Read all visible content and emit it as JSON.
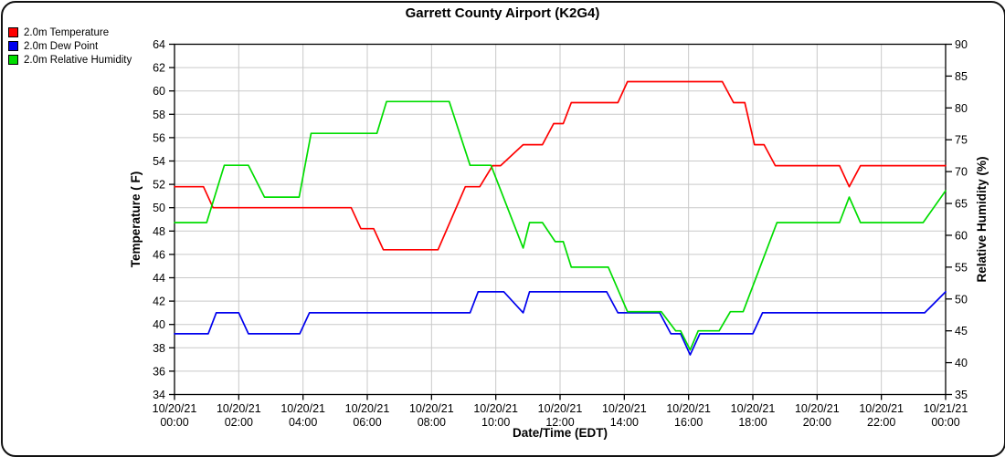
{
  "window": {
    "title": "Garrett County Airport (K2G4)"
  },
  "legend": {
    "items": [
      {
        "label": "2.0m Temperature",
        "color": "#ff0000"
      },
      {
        "label": "2.0m Dew Point",
        "color": "#0000ee"
      },
      {
        "label": "2.0m Relative Humidity",
        "color": "#00dd00"
      }
    ]
  },
  "chart_data": {
    "type": "line",
    "title": "Garrett County Airport (K2G4)",
    "grid": true,
    "grid_color": "#c9c9c9",
    "axis_color": "#000000",
    "x_axis": {
      "label": "Date/Time (EDT)",
      "range_hours": [
        0,
        24
      ],
      "tick_interval_hours": 2,
      "tick_labels": [
        {
          "date": "10/20/21",
          "time": "00:00"
        },
        {
          "date": "10/20/21",
          "time": "02:00"
        },
        {
          "date": "10/20/21",
          "time": "04:00"
        },
        {
          "date": "10/20/21",
          "time": "06:00"
        },
        {
          "date": "10/20/21",
          "time": "08:00"
        },
        {
          "date": "10/20/21",
          "time": "10:00"
        },
        {
          "date": "10/20/21",
          "time": "12:00"
        },
        {
          "date": "10/20/21",
          "time": "14:00"
        },
        {
          "date": "10/20/21",
          "time": "16:00"
        },
        {
          "date": "10/20/21",
          "time": "18:00"
        },
        {
          "date": "10/20/21",
          "time": "20:00"
        },
        {
          "date": "10/20/21",
          "time": "22:00"
        },
        {
          "date": "10/21/21",
          "time": "00:00"
        }
      ]
    },
    "left_axis": {
      "label": "Temperature ( F)",
      "min": 34,
      "max": 64,
      "step": 2
    },
    "right_axis": {
      "label": "Relative Humidity (%)",
      "min": 35,
      "max": 90,
      "step": 5
    },
    "series": [
      {
        "name": "2.0m Temperature",
        "color": "#ff0000",
        "axis": "left",
        "points": [
          [
            0,
            51.8
          ],
          [
            0.9,
            51.8
          ],
          [
            1.2,
            50
          ],
          [
            5.5,
            50
          ],
          [
            5.8,
            48.2
          ],
          [
            6.2,
            48.2
          ],
          [
            6.5,
            46.4
          ],
          [
            8.2,
            46.4
          ],
          [
            9.05,
            51.8
          ],
          [
            9.5,
            51.8
          ],
          [
            9.9,
            53.6
          ],
          [
            10.15,
            53.6
          ],
          [
            10.85,
            55.4
          ],
          [
            11.45,
            55.4
          ],
          [
            11.8,
            57.2
          ],
          [
            12.1,
            57.2
          ],
          [
            12.35,
            59
          ],
          [
            13.8,
            59
          ],
          [
            14.1,
            60.8
          ],
          [
            17.05,
            60.8
          ],
          [
            17.4,
            59
          ],
          [
            17.75,
            59
          ],
          [
            18.05,
            55.4
          ],
          [
            18.35,
            55.4
          ],
          [
            18.7,
            53.6
          ],
          [
            20.7,
            53.6
          ],
          [
            21,
            51.8
          ],
          [
            21.35,
            53.6
          ],
          [
            24,
            53.6
          ]
        ]
      },
      {
        "name": "2.0m Dew Point",
        "color": "#0000ee",
        "axis": "left",
        "points": [
          [
            0,
            39.2
          ],
          [
            1.05,
            39.2
          ],
          [
            1.3,
            41
          ],
          [
            2,
            41
          ],
          [
            2.3,
            39.2
          ],
          [
            3.9,
            39.2
          ],
          [
            4.2,
            41
          ],
          [
            9.2,
            41
          ],
          [
            9.45,
            42.8
          ],
          [
            10.25,
            42.8
          ],
          [
            10.85,
            41
          ],
          [
            11.05,
            42.8
          ],
          [
            13.45,
            42.8
          ],
          [
            13.8,
            41
          ],
          [
            15.1,
            41
          ],
          [
            15.45,
            39.2
          ],
          [
            15.75,
            39.2
          ],
          [
            16.05,
            37.4
          ],
          [
            16.35,
            39.2
          ],
          [
            18,
            39.2
          ],
          [
            18.3,
            41
          ],
          [
            23.35,
            41
          ],
          [
            24,
            42.8
          ]
        ]
      },
      {
        "name": "2.0m Relative Humidity",
        "color": "#00dd00",
        "axis": "right",
        "points": [
          [
            0,
            62
          ],
          [
            1,
            62
          ],
          [
            1.55,
            71
          ],
          [
            2.3,
            71
          ],
          [
            2.8,
            66
          ],
          [
            3.88,
            66
          ],
          [
            4.25,
            76
          ],
          [
            6.3,
            76
          ],
          [
            6.6,
            81
          ],
          [
            8.55,
            81
          ],
          [
            9.2,
            71
          ],
          [
            9.85,
            71
          ],
          [
            10.85,
            58
          ],
          [
            11.05,
            62
          ],
          [
            11.45,
            62
          ],
          [
            11.85,
            59
          ],
          [
            12.1,
            59
          ],
          [
            12.35,
            55
          ],
          [
            13.5,
            55
          ],
          [
            14.1,
            48
          ],
          [
            15.15,
            48
          ],
          [
            15.6,
            45
          ],
          [
            15.75,
            45
          ],
          [
            16.05,
            42
          ],
          [
            16.3,
            45
          ],
          [
            16.95,
            45
          ],
          [
            17.3,
            48
          ],
          [
            17.7,
            48
          ],
          [
            18.75,
            62
          ],
          [
            20.7,
            62
          ],
          [
            21,
            66
          ],
          [
            21.35,
            62
          ],
          [
            23.3,
            62
          ],
          [
            24,
            67
          ]
        ]
      }
    ]
  }
}
